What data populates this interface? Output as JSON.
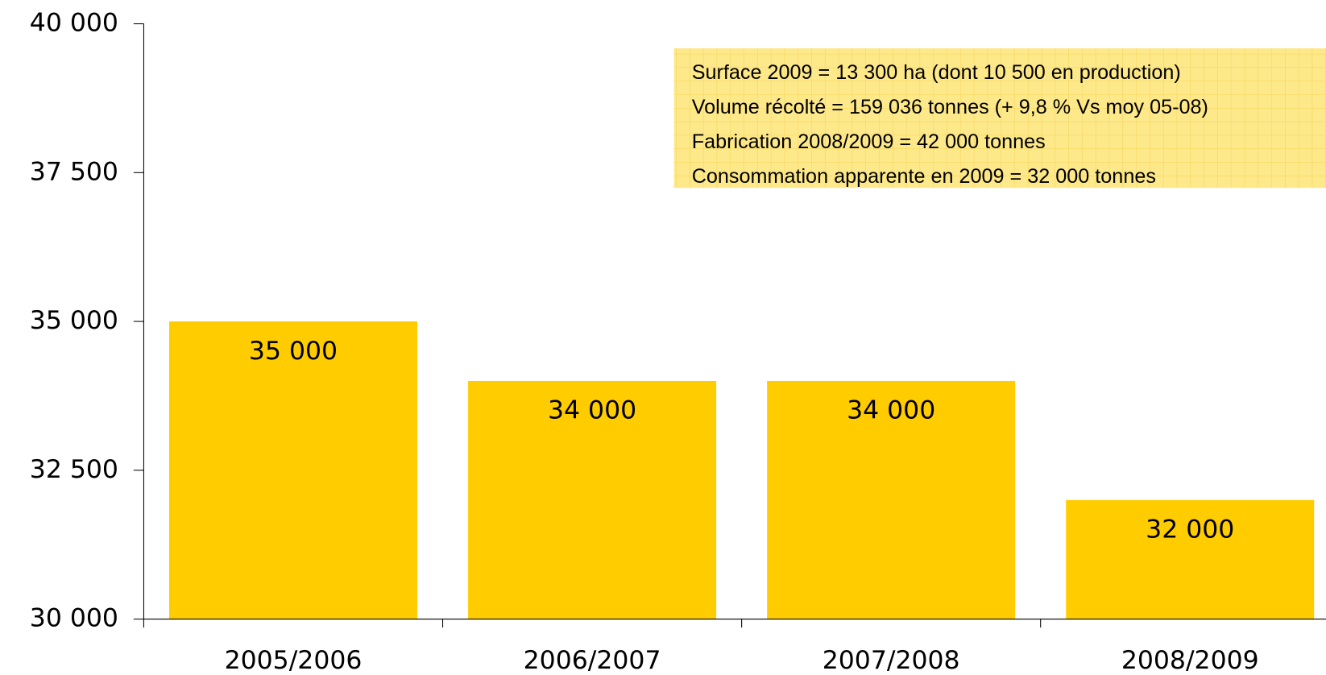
{
  "chart_data": {
    "type": "bar",
    "categories": [
      "2005/2006",
      "2006/2007",
      "2007/2008",
      "2008/2009"
    ],
    "values": [
      35000,
      34000,
      34000,
      32000
    ],
    "value_labels": [
      "35 000",
      "34 000",
      "34 000",
      "32 000"
    ],
    "color": "#ffcc00",
    "ylim": [
      30000,
      40000
    ],
    "yticks": [
      {
        "value": 30000,
        "label": "30 000"
      },
      {
        "value": 32500,
        "label": "32 500"
      },
      {
        "value": 35000,
        "label": "35 000"
      },
      {
        "value": 37500,
        "label": "37 500"
      },
      {
        "value": 40000,
        "label": "40 000"
      }
    ],
    "grid": false,
    "annotation": [
      "Surface 2009 = 13 300 ha (dont 10 500 en production)",
      "Volume récolté = 159 036 tonnes (+ 9,8 % Vs moy 05-08)",
      "Fabrication 2008/2009 = 42 000 tonnes",
      "Consommation apparente en 2009 = 32 000 tonnes"
    ]
  }
}
